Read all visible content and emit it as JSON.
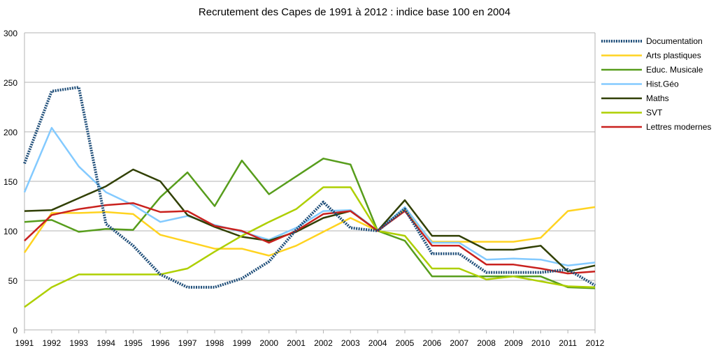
{
  "chart_data": {
    "type": "line",
    "title": "Recrutement des Capes de 1991 à 2012 : indice base 100 en 2004",
    "xlabel": "",
    "ylabel": "",
    "ylim": [
      0,
      300
    ],
    "yticks": [
      0,
      50,
      100,
      150,
      200,
      250,
      300
    ],
    "grid": "horizontal",
    "legend_position": "right",
    "x": [
      "1991",
      "1992",
      "1993",
      "1994",
      "1995",
      "1996",
      "1997",
      "1998",
      "1999",
      "2000",
      "2001",
      "2002",
      "2003",
      "2004",
      "2005",
      "2006",
      "2007",
      "2008",
      "2009",
      "2010",
      "2011",
      "2012"
    ],
    "series": [
      {
        "name": "Documentation",
        "color": "#1F4E79",
        "style": "dotted",
        "values": [
          168,
          241,
          245,
          107,
          85,
          56,
          43,
          43,
          52,
          69,
          101,
          129,
          103,
          100,
          122,
          77,
          77,
          58,
          58,
          58,
          61,
          45
        ]
      },
      {
        "name": "Arts plastiques",
        "color": "#FFD320",
        "style": "solid",
        "values": [
          78,
          118,
          118,
          119,
          117,
          96,
          89,
          82,
          82,
          75,
          85,
          99,
          113,
          100,
          122,
          89,
          89,
          89,
          89,
          93,
          120,
          124
        ]
      },
      {
        "name": "Educ. Musicale",
        "color": "#579D1C",
        "style": "solid",
        "values": [
          109,
          111,
          99,
          102,
          101,
          134,
          159,
          125,
          171,
          137,
          155,
          173,
          167,
          100,
          90,
          54,
          54,
          54,
          54,
          54,
          43,
          42
        ]
      },
      {
        "name": "Hist.Géo",
        "color": "#83CAFF",
        "style": "solid",
        "values": [
          139,
          204,
          165,
          139,
          126,
          109,
          115,
          106,
          99,
          91,
          103,
          120,
          121,
          100,
          124,
          88,
          88,
          71,
          72,
          71,
          65,
          68
        ]
      },
      {
        "name": "Maths",
        "color": "#314004",
        "style": "solid",
        "values": [
          120,
          121,
          133,
          145,
          162,
          150,
          116,
          104,
          94,
          90,
          99,
          113,
          120,
          100,
          131,
          95,
          95,
          81,
          81,
          85,
          59,
          65
        ]
      },
      {
        "name": "SVT",
        "color": "#AECF00",
        "style": "solid",
        "values": [
          23,
          43,
          56,
          56,
          56,
          56,
          62,
          79,
          95,
          109,
          122,
          144,
          144,
          100,
          95,
          62,
          62,
          51,
          54,
          49,
          44,
          43
        ]
      },
      {
        "name": "Lettres modernes",
        "color": "#C9211E",
        "style": "solid",
        "values": [
          90,
          116,
          122,
          126,
          128,
          119,
          120,
          105,
          100,
          88,
          100,
          117,
          120,
          100,
          120,
          85,
          85,
          66,
          66,
          62,
          57,
          59
        ]
      }
    ]
  }
}
